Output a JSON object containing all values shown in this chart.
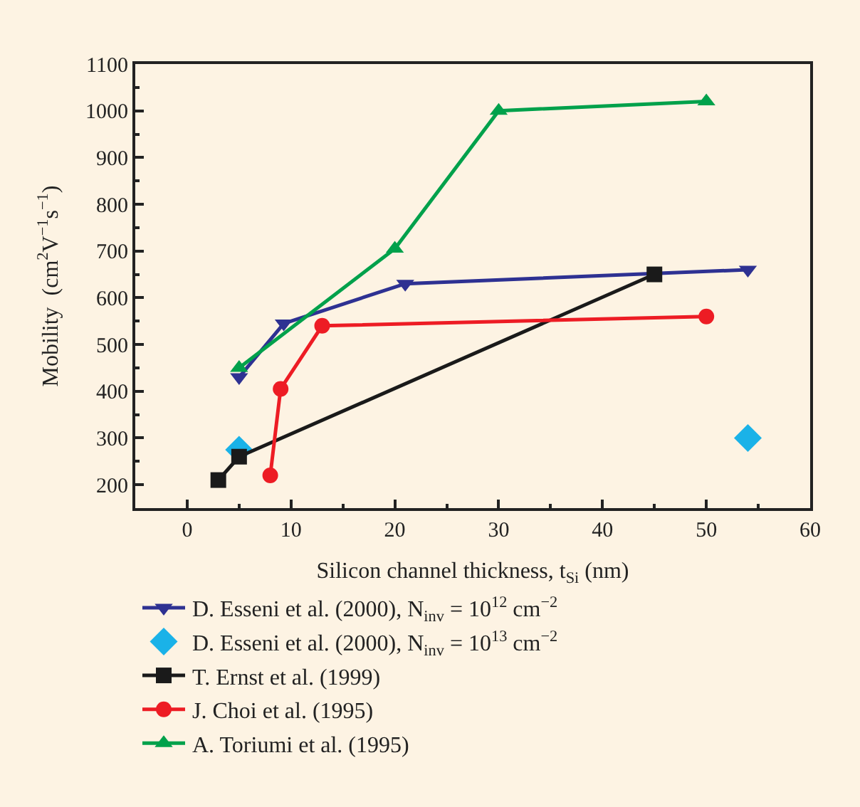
{
  "chart_data": {
    "type": "line",
    "xlabel": "Silicon channel thickness, t$_{Si}$ (nm)",
    "ylabel": "Mobility  (cm$^{2}$V$^{−1}$s$^{−1}$)",
    "xlim": [
      -5,
      60
    ],
    "xticks": [
      0,
      10,
      20,
      30,
      40,
      50,
      60
    ],
    "ylim": [
      150,
      1100
    ],
    "yticks": [
      200,
      300,
      400,
      500,
      600,
      700,
      800,
      900,
      1000,
      1100
    ],
    "grid": false,
    "legend": "bottom",
    "series": [
      {
        "name": "D. Esseni et al. (2000), N$_{inv}$ = 10$^{12}$ cm$^{−2}$",
        "color": "#2e3192",
        "marker": "triangle-down",
        "line_style": "solid",
        "x": [
          5,
          9.3,
          21,
          54
        ],
        "values": [
          430,
          545,
          630,
          660
        ]
      },
      {
        "name": "D. Esseni et al. (2000), N$_{inv}$ = 10$^{13}$ cm$^{−2}$",
        "color": "#1ab2e8",
        "marker": "diamond",
        "type": "scatter",
        "x": [
          5,
          54
        ],
        "values": [
          275,
          300
        ]
      },
      {
        "name": "T. Ernst et al. (1999)",
        "color": "#1a1a1a",
        "marker": "square",
        "line_style": "solid",
        "x": [
          3,
          5,
          45
        ],
        "values": [
          210,
          260,
          650
        ]
      },
      {
        "name": "J. Choi et al. (1995)",
        "color": "#ed1c24",
        "marker": "circle",
        "line_style": "solid",
        "x": [
          8,
          9,
          13,
          50
        ],
        "values": [
          220,
          405,
          540,
          560
        ]
      },
      {
        "name": "A. Toriumi et al. (1995)",
        "color": "#00a14b",
        "marker": "triangle",
        "line_style": "solid",
        "x": [
          5,
          20,
          30,
          50
        ],
        "values": [
          450,
          705,
          1000,
          1020
        ]
      }
    ]
  }
}
